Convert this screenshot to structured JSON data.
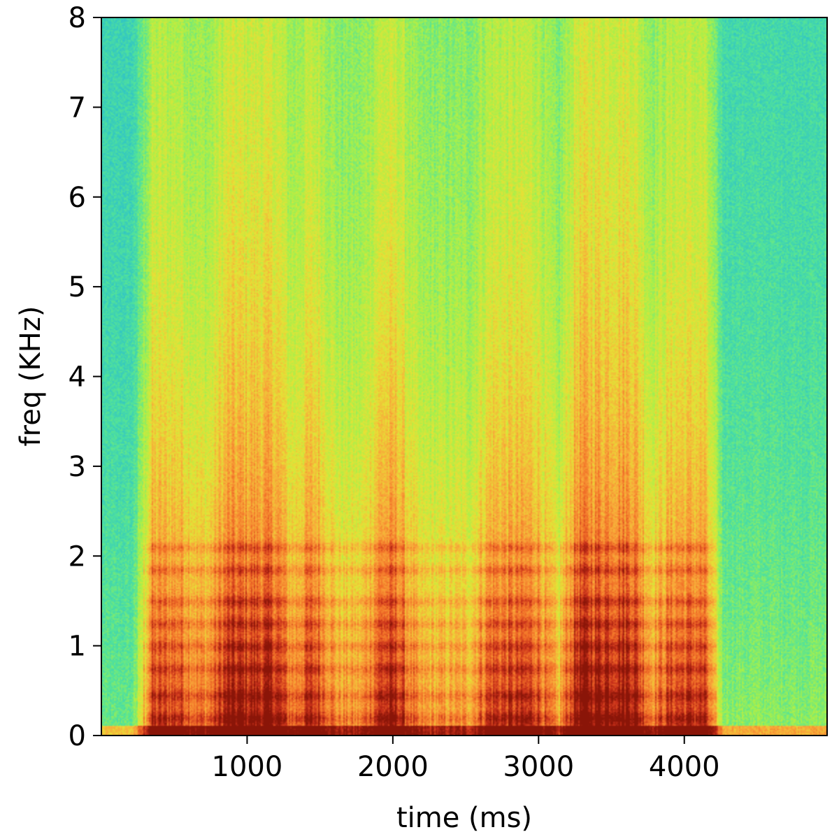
{
  "chart_data": {
    "type": "heatmap",
    "title": "",
    "xlabel": "time (ms)",
    "ylabel": "freq (KHz)",
    "xlim": [
      0,
      4980
    ],
    "ylim": [
      0,
      8
    ],
    "xticks": [
      1000,
      2000,
      3000,
      4000
    ],
    "yticks": [
      0,
      1,
      2,
      3,
      4,
      5,
      6,
      7,
      8
    ],
    "grid": false,
    "colormap": [
      "#3b4cc0",
      "#3a8ef0",
      "#2fc3c8",
      "#52e39a",
      "#a8f04a",
      "#e6e236",
      "#f9a93a",
      "#f27028",
      "#c8301a",
      "#8a1508"
    ],
    "segments": [
      {
        "t_start": 0,
        "t_end": 280,
        "level": 0.18
      },
      {
        "t_start": 280,
        "t_end": 600,
        "level": 0.82
      },
      {
        "t_start": 600,
        "t_end": 800,
        "level": 0.7
      },
      {
        "t_start": 800,
        "t_end": 1250,
        "level": 0.95
      },
      {
        "t_start": 1250,
        "t_end": 1350,
        "level": 0.65
      },
      {
        "t_start": 1350,
        "t_end": 1550,
        "level": 0.85
      },
      {
        "t_start": 1550,
        "t_end": 1850,
        "level": 0.62
      },
      {
        "t_start": 1850,
        "t_end": 2100,
        "level": 0.9
      },
      {
        "t_start": 2100,
        "t_end": 2600,
        "level": 0.6
      },
      {
        "t_start": 2600,
        "t_end": 3050,
        "level": 0.85
      },
      {
        "t_start": 3050,
        "t_end": 3200,
        "level": 0.55
      },
      {
        "t_start": 3200,
        "t_end": 3700,
        "level": 1.0
      },
      {
        "t_start": 3700,
        "t_end": 3850,
        "level": 0.68
      },
      {
        "t_start": 3850,
        "t_end": 4200,
        "level": 0.85
      },
      {
        "t_start": 4200,
        "t_end": 4980,
        "level": 0.25
      }
    ],
    "harmonic_bands_khz": [
      0.2,
      0.45,
      0.75,
      1.0,
      1.25,
      1.5,
      1.85,
      2.1
    ]
  },
  "axes": {
    "xlabel": "time (ms)",
    "ylabel": "freq (KHz)",
    "xtick_labels": [
      "1000",
      "2000",
      "3000",
      "4000"
    ],
    "ytick_labels": [
      "0",
      "1",
      "2",
      "3",
      "4",
      "5",
      "6",
      "7",
      "8"
    ]
  }
}
